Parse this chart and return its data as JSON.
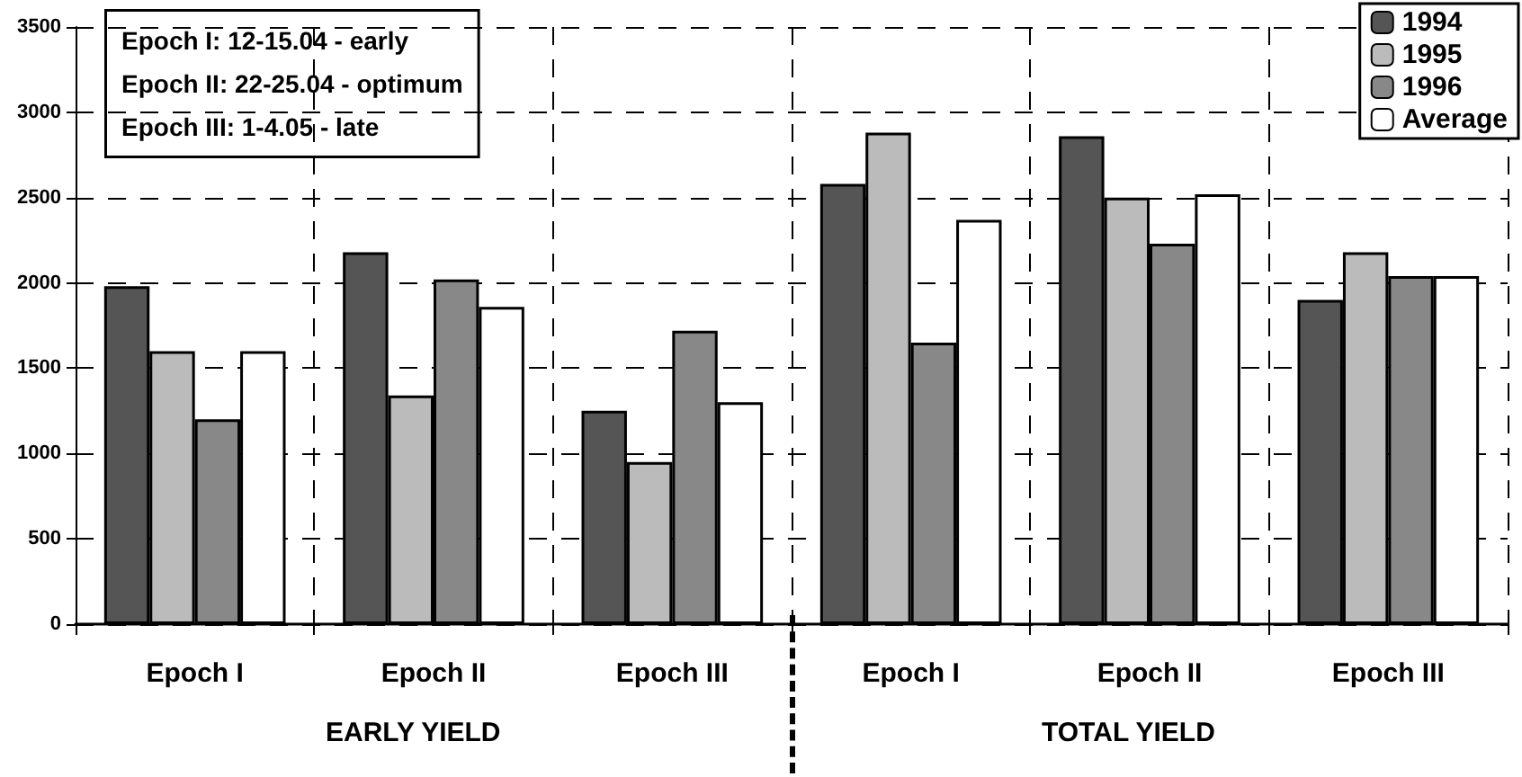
{
  "chart_data": {
    "type": "bar",
    "categories": [
      "Epoch I",
      "Epoch II",
      "Epoch III",
      "Epoch I",
      "Epoch II",
      "Epoch III"
    ],
    "series": [
      {
        "name": "1994",
        "color": "#555555",
        "values": [
          1980,
          2180,
          1250,
          2580,
          2860,
          1900
        ]
      },
      {
        "name": "1995",
        "color": "#bbbbbb",
        "values": [
          1600,
          1340,
          950,
          2880,
          2500,
          2180
        ]
      },
      {
        "name": "1996",
        "color": "#888888",
        "values": [
          1200,
          2020,
          1720,
          1650,
          2230,
          2040
        ]
      },
      {
        "name": "Average",
        "color": "#ffffff",
        "values": [
          1600,
          1860,
          1300,
          2370,
          2520,
          2040
        ]
      }
    ],
    "ylim": [
      0,
      3500
    ],
    "yticks": [
      0,
      500,
      1000,
      1500,
      2000,
      2500,
      3000,
      3500
    ],
    "grid": true,
    "legend": "top right",
    "annotations": [
      "EARLY YIELD",
      "TOTAL YIELD",
      "Epoch I: 12-15.04 - early",
      "Epoch II: 22-25.04 - optimum",
      "Epoch III: 1-4.05 - late"
    ]
  }
}
